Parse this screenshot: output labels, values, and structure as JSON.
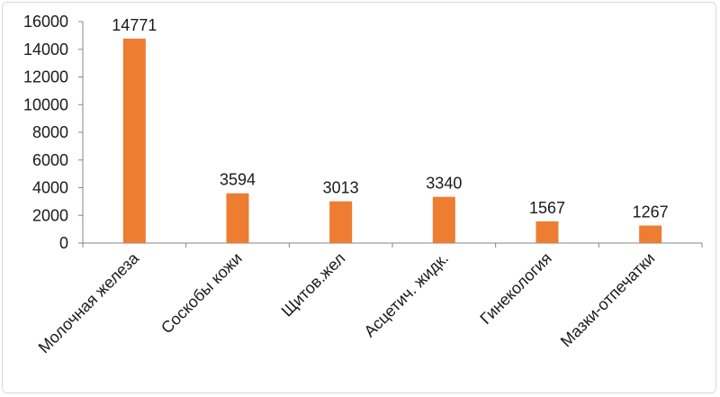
{
  "chart_data": {
    "type": "bar",
    "categories": [
      "Молочная железа",
      "Соскобы кожи",
      "Щитов.жел",
      "Асцетич. жидк.",
      "Гинекология",
      "Мазки-отпечатки"
    ],
    "values": [
      14771,
      3594,
      3013,
      3340,
      1567,
      1267
    ],
    "value_labels": [
      "14771",
      "3594",
      "3013",
      "3340",
      "1567",
      "1267"
    ],
    "ylim": [
      0,
      16000
    ],
    "yticks": [
      "0",
      "2000",
      "4000",
      "6000",
      "8000",
      "10000",
      "12000",
      "14000",
      "16000"
    ],
    "ytick_values": [
      0,
      2000,
      4000,
      6000,
      8000,
      10000,
      12000,
      14000,
      16000
    ],
    "title": "",
    "xlabel": "",
    "ylabel": "",
    "grid": false,
    "legend": "none",
    "bar_color": "#ed7d31",
    "axis_color": "#868686"
  }
}
